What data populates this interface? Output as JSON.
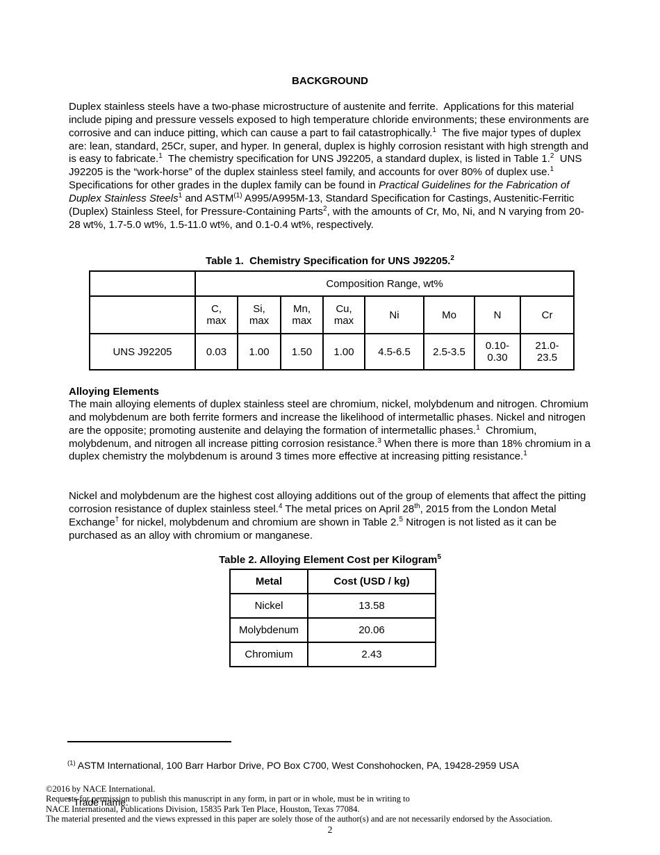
{
  "heading": "BACKGROUND",
  "page_number": "2",
  "colors": {
    "text": "#000000",
    "background": "#ffffff",
    "table_border": "#000000"
  },
  "sections": {
    "alloying_heading": "Alloying Elements"
  },
  "paragraphs": {
    "background": [
      {
        "t": "Duplex stainless steels have a two-phase microstructure of austenite and ferrite.  Applications for this material include piping and pressure vessels exposed to high temperature chloride environments; these environments are corrosive and can induce pitting, which can cause a part to fail catastrophically."
      },
      {
        "t": "1",
        "sup": true
      },
      {
        "t": "  The five major types of duplex are: lean, standard, 25Cr, super, and hyper. In general, duplex is highly corrosion resistant with high strength and is easy to fabricate."
      },
      {
        "t": "1",
        "sup": true
      },
      {
        "t": "  The chemistry specification for UNS J92205, a standard duplex, is listed in Table 1."
      },
      {
        "t": "2",
        "sup": true
      },
      {
        "t": "  UNS J92205 is the “work-horse” of the duplex stainless steel family, and accounts for over 80% of duplex use."
      },
      {
        "t": "1",
        "sup": true
      },
      {
        "t": "  Specifications for other grades in the duplex family can be found in "
      },
      {
        "t": "Practical Guidelines for the Fabrication of Duplex Stainless Steels",
        "i": true
      },
      {
        "t": "1",
        "sup": true
      },
      {
        "t": " and ASTM"
      },
      {
        "t": "(1)",
        "sup": true
      },
      {
        "t": " A995/A995M-13, Standard Specification for Castings, Austenitic-Ferritic (Duplex) Stainless Steel, for Pressure-Containing Parts"
      },
      {
        "t": "2",
        "sup": true
      },
      {
        "t": ", with the amounts of Cr, Mo, Ni, and N varying from 20-28 wt%, 1.7-5.0 wt%, 1.5-11.0 wt%, and 0.1-0.4 wt%, respectively."
      }
    ],
    "alloying": [
      {
        "t": "The main alloying elements of duplex stainless steel are chromium, nickel, molybdenum and nitrogen. Chromium and molybdenum are both ferrite formers and increase the likelihood of intermetallic phases. Nickel and nitrogen are the opposite; promoting austenite and delaying the formation of intermetallic phases."
      },
      {
        "t": "1",
        "sup": true
      },
      {
        "t": "  Chromium, molybdenum, and nitrogen all increase pitting corrosion resistance."
      },
      {
        "t": "3",
        "sup": true
      },
      {
        "t": " When there is more than 18% chromium in a duplex chemistry the molybdenum is around 3 times more effective at increasing pitting resistance."
      },
      {
        "t": "1",
        "sup": true
      }
    ],
    "cost": [
      {
        "t": "Nickel and molybdenum are the highest cost alloying additions out of the group of elements that affect the pitting corrosion resistance of duplex stainless steel."
      },
      {
        "t": "4",
        "sup": true
      },
      {
        "t": " The metal prices on April 28"
      },
      {
        "t": "th",
        "sup": true
      },
      {
        "t": ", 2015 from the London Metal Exchange"
      },
      {
        "t": "†",
        "sup": true
      },
      {
        "t": " for nickel, molybdenum and chromium are shown in Table 2."
      },
      {
        "t": "5",
        "sup": true
      },
      {
        "t": " Nitrogen is not listed as it can be purchased as an alloy with chromium or manganese."
      }
    ]
  },
  "table1": {
    "caption": [
      {
        "t": "Table 1.  Chemistry Specification for UNS J92205."
      },
      {
        "t": "2",
        "sup": true
      }
    ],
    "group_header": "Composition Range, wt%",
    "columns": [
      "C,\nmax",
      "Si,\nmax",
      "Mn,\nmax",
      "Cu,\nmax",
      "Ni",
      "Mo",
      "N",
      "Cr"
    ],
    "row_label": "UNS J92205",
    "values": [
      "0.03",
      "1.00",
      "1.50",
      "1.00",
      "4.5-6.5",
      "2.5-3.5",
      "0.10-\n0.30",
      "21.0-\n23.5"
    ]
  },
  "table2": {
    "caption": [
      {
        "t": "Table 2. Alloying Element Cost per Kilogram"
      },
      {
        "t": "5",
        "sup": true
      }
    ],
    "headers": [
      "Metal",
      "Cost (USD / kg)"
    ],
    "rows": [
      [
        "Nickel",
        "13.58"
      ],
      [
        "Molybdenum",
        "20.06"
      ],
      [
        "Chromium",
        "2.43"
      ]
    ]
  },
  "footnotes": {
    "astm": [
      {
        "t": "(1)",
        "sup": true
      },
      {
        "t": " ASTM International, 100 Barr Harbor Drive, PO Box C700, West Conshohocken, PA, 19428-2959 USA"
      }
    ],
    "trade": [
      {
        "t": "†",
        "sup": true
      },
      {
        "t": " Trade name."
      }
    ]
  },
  "copyright": {
    "lines": [
      "©2016 by NACE International.",
      "Requests for permission to publish this manuscript in any form, in part or in whole, must be in writing to",
      "NACE International, Publications Division, 15835 Park Ten Place, Houston, Texas 77084.",
      "The material presented and the views expressed in this paper are solely those of the author(s) and are not necessarily endorsed by the Association."
    ]
  }
}
